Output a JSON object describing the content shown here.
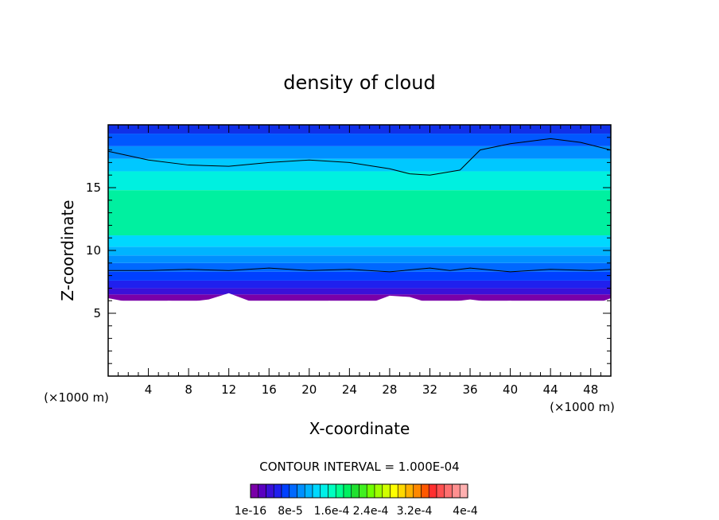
{
  "chart_data": {
    "type": "heatmap",
    "title": "density of cloud",
    "xlabel": "X-coordinate",
    "ylabel": "Z-coordinate",
    "x_unit": "(×1000 m)",
    "y_unit": "(×1000 m)",
    "xlim": [
      0,
      50
    ],
    "ylim": [
      0,
      20
    ],
    "xticks": [
      4,
      8,
      12,
      16,
      20,
      24,
      28,
      32,
      36,
      40,
      44,
      48
    ],
    "yticks": [
      5,
      10,
      15
    ],
    "contour_interval_text": "CONTOUR INTERVAL = 1.000E-04",
    "colorbar": {
      "labels": [
        "1e-16",
        "8e-5",
        "1.6e-4",
        "2.4e-4",
        "3.2e-4",
        "4e-4"
      ],
      "colors": [
        "#7a00a8",
        "#5a00c0",
        "#3a10d8",
        "#2020ee",
        "#0040ff",
        "#0068ff",
        "#0090ff",
        "#00b4ff",
        "#00d8ff",
        "#00f0e8",
        "#00ffc0",
        "#00ff90",
        "#00f060",
        "#20e030",
        "#40f020",
        "#70ff00",
        "#a0ff00",
        "#d0ff00",
        "#ffff00",
        "#ffd800",
        "#ffb000",
        "#ff8800",
        "#ff5800",
        "#ff3030",
        "#ff5050",
        "#ff7070",
        "#ff9090",
        "#ffb0b0"
      ]
    },
    "layers": [
      {
        "z_bottom": 6.0,
        "z_top": 6.5,
        "color": "#7a00a8"
      },
      {
        "z_bottom": 6.5,
        "z_top": 7.0,
        "color": "#3a10d8"
      },
      {
        "z_bottom": 7.0,
        "z_top": 7.6,
        "color": "#2020ee"
      },
      {
        "z_bottom": 7.6,
        "z_top": 8.3,
        "color": "#0040ff"
      },
      {
        "z_bottom": 8.3,
        "z_top": 9.0,
        "color": "#0068ff"
      },
      {
        "z_bottom": 9.0,
        "z_top": 9.6,
        "color": "#0090ff"
      },
      {
        "z_bottom": 9.6,
        "z_top": 10.3,
        "color": "#00b4ff"
      },
      {
        "z_bottom": 10.3,
        "z_top": 11.2,
        "color": "#00d8ff"
      },
      {
        "z_bottom": 11.2,
        "z_top": 14.8,
        "color": "#00f0a0"
      },
      {
        "z_bottom": 14.8,
        "z_top": 16.3,
        "color": "#00f0e0"
      },
      {
        "z_bottom": 16.3,
        "z_top": 17.3,
        "color": "#00c8ff"
      },
      {
        "z_bottom": 17.3,
        "z_top": 18.3,
        "color": "#0090ff"
      },
      {
        "z_bottom": 18.3,
        "z_top": 19.3,
        "color": "#0058ff"
      },
      {
        "z_bottom": 19.3,
        "z_top": 20.0,
        "color": "#1030e8"
      }
    ],
    "upper_contour": {
      "x": [
        0,
        4,
        8,
        12,
        16,
        20,
        24,
        28,
        30,
        32,
        35,
        37,
        40,
        44,
        47,
        50
      ],
      "z": [
        17.9,
        17.2,
        16.8,
        16.7,
        17.0,
        17.2,
        17.0,
        16.5,
        16.1,
        16.0,
        16.4,
        18.0,
        18.5,
        18.9,
        18.6,
        18.0
      ]
    },
    "lower_contour": {
      "x": [
        0,
        4,
        8,
        12,
        16,
        20,
        24,
        28,
        32,
        34,
        36,
        40,
        44,
        48,
        50
      ],
      "z": [
        8.4,
        8.4,
        8.5,
        8.4,
        8.6,
        8.4,
        8.5,
        8.3,
        8.6,
        8.4,
        8.6,
        8.3,
        8.5,
        8.4,
        8.5
      ]
    },
    "cloud_base": {
      "x": [
        0,
        2,
        4,
        6,
        8,
        10,
        12,
        14,
        16,
        18,
        20,
        22,
        24,
        26,
        28,
        30,
        32,
        34,
        36,
        38,
        40,
        42,
        44,
        46,
        48,
        50
      ],
      "z": [
        6.2,
        5.9,
        5.8,
        6.0,
        5.9,
        6.1,
        6.6,
        6.0,
        5.8,
        5.9,
        5.7,
        6.0,
        5.6,
        5.8,
        6.4,
        6.3,
        5.8,
        5.9,
        6.1,
        5.9,
        6.0,
        5.8,
        5.9,
        5.7,
        5.6,
        6.2
      ]
    }
  }
}
